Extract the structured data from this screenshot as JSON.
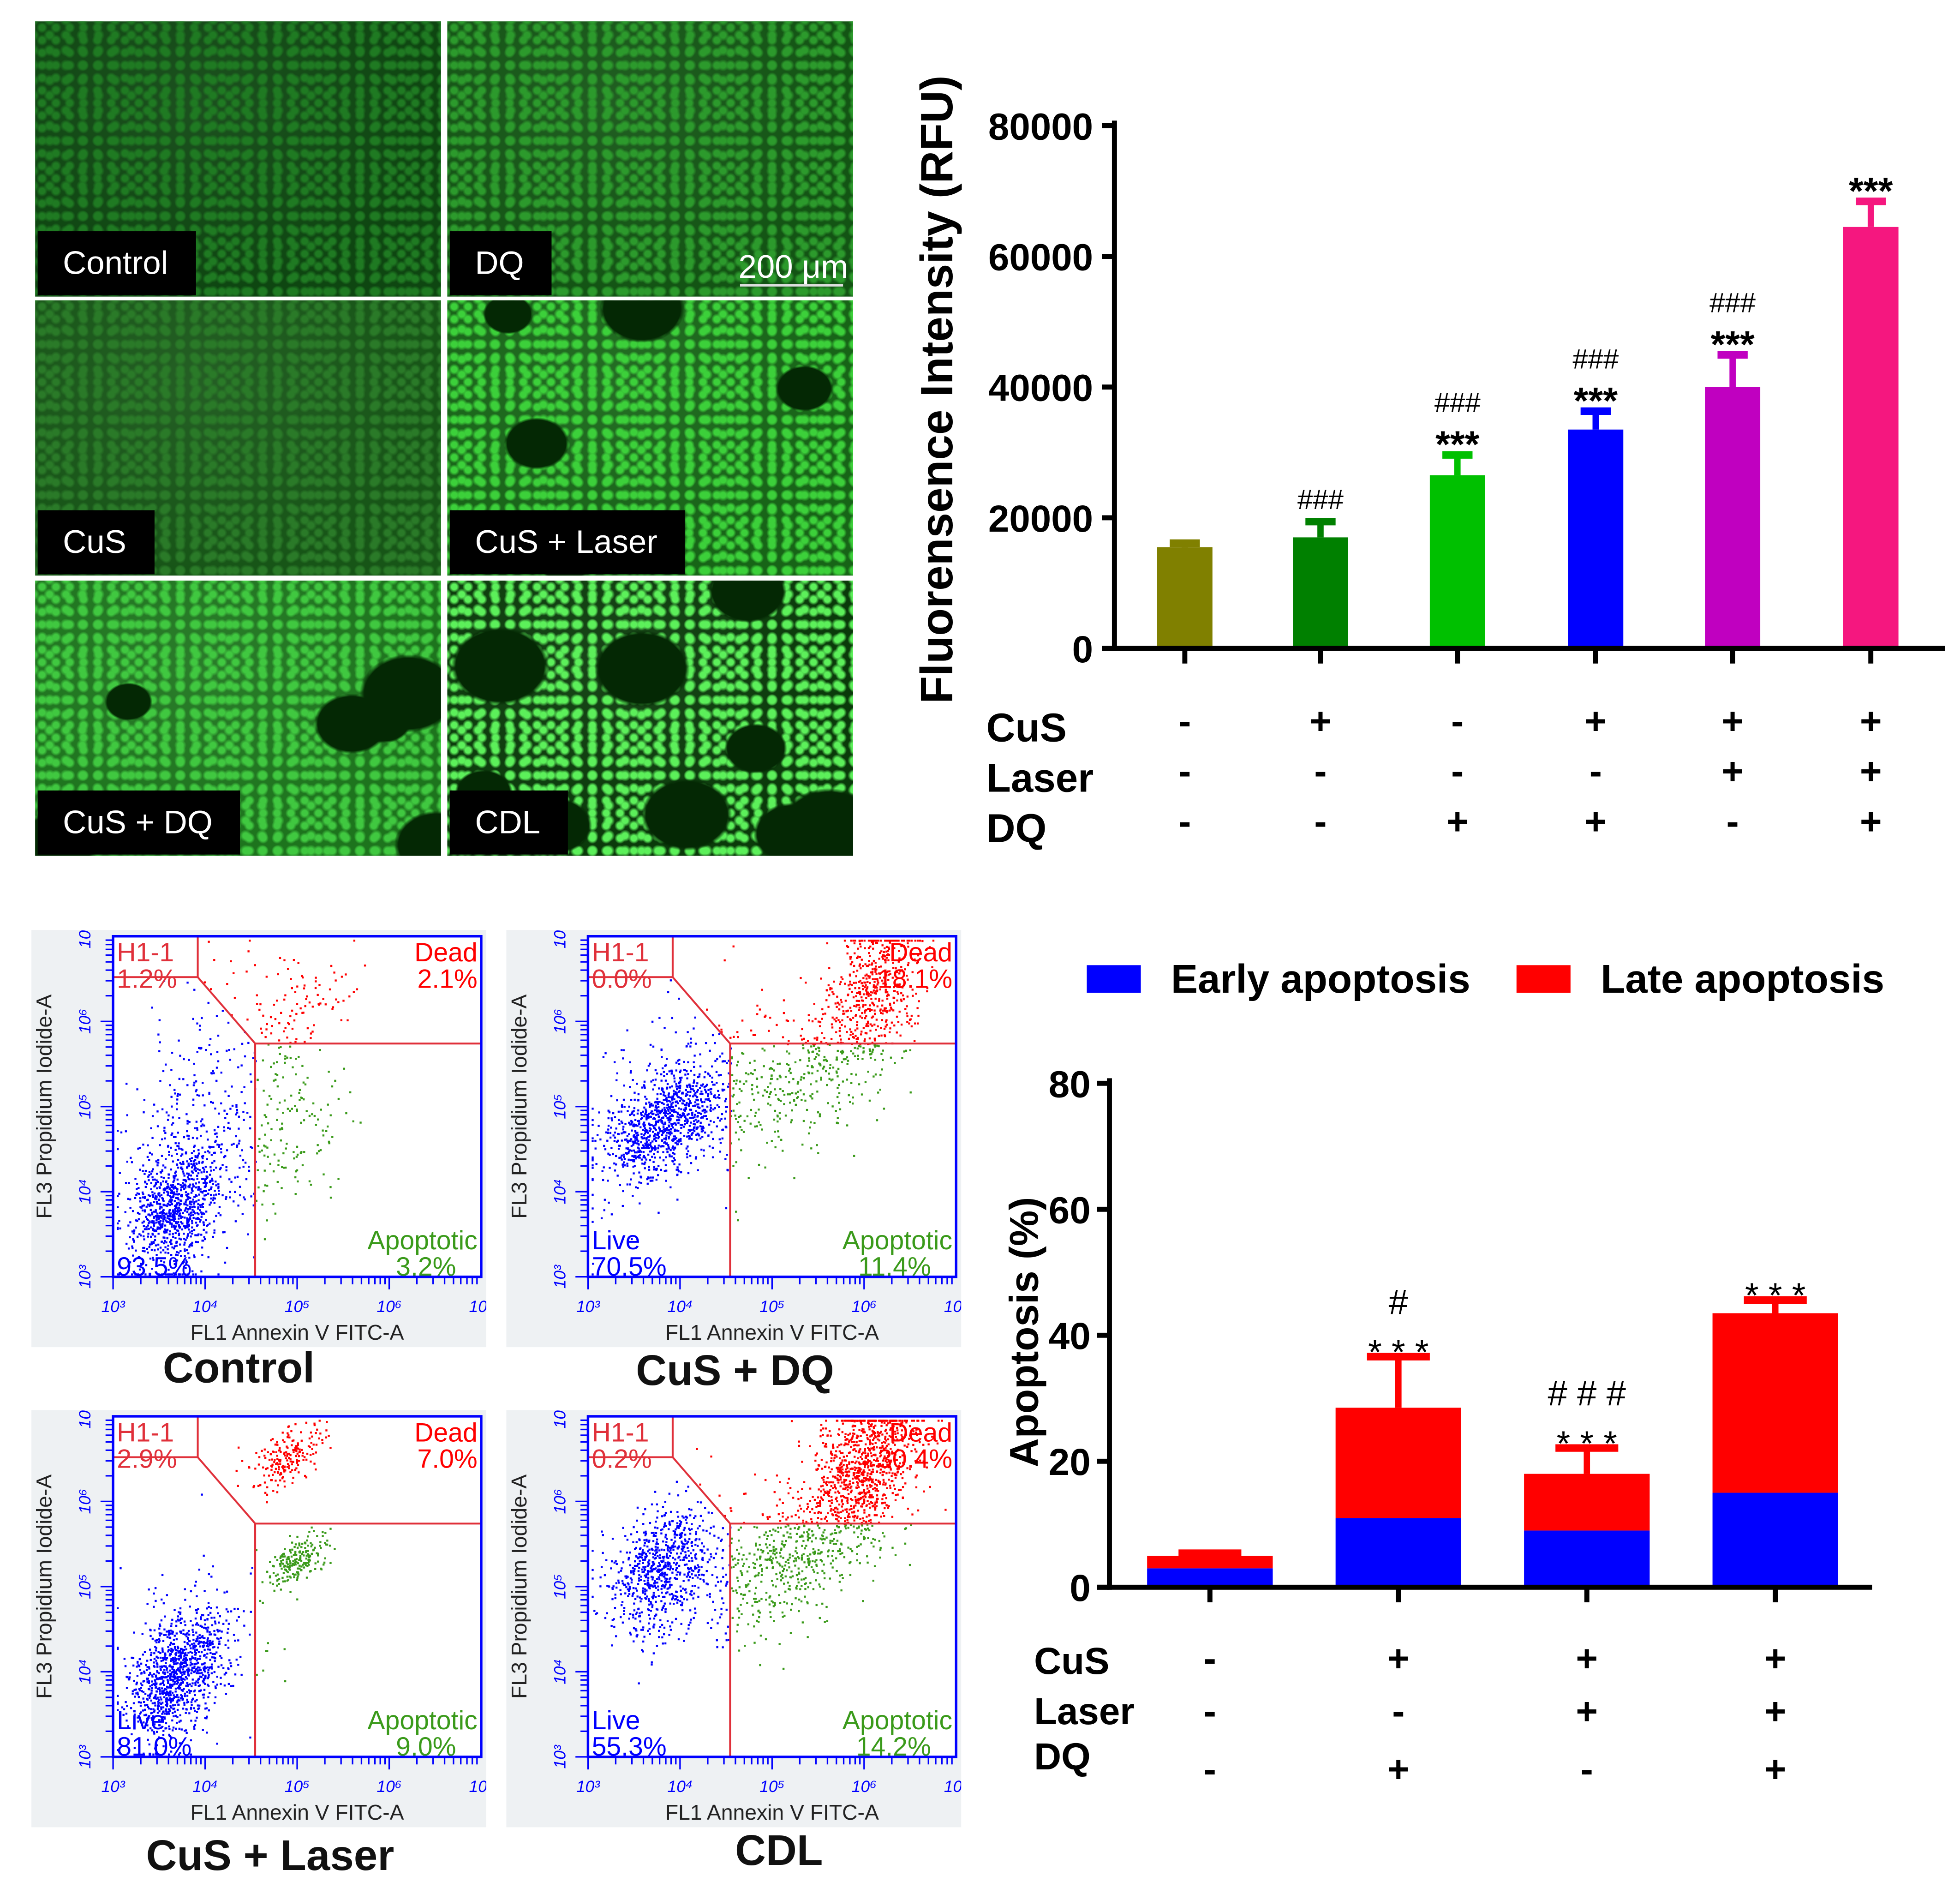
{
  "microscopy": {
    "panels": [
      {
        "label": "Control",
        "base": "#0e4611",
        "cell": "#1f7a22",
        "holes": 0
      },
      {
        "label": "DQ",
        "base": "#135414",
        "cell": "#2c9a2c",
        "holes": 0
      },
      {
        "label": "CuS",
        "base": "#175517",
        "cell": "#2a7a28",
        "holes": 0
      },
      {
        "label": "CuS + Laser",
        "base": "#176417",
        "cell": "#3cd03a",
        "holes": 5
      },
      {
        "label": "CuS + DQ",
        "base": "#1d741d",
        "cell": "#40c840",
        "holes": 6
      },
      {
        "label": "CDL",
        "base": "#0a3a0a",
        "cell": "#5cf05a",
        "holes": 10
      }
    ],
    "scale_bar": "200 μm"
  },
  "chart_data": [
    {
      "type": "bar",
      "ylabel": "Fluorensence Intensity (RFU)",
      "ylim": [
        0,
        80000
      ],
      "yticks": [
        "0",
        "20000",
        "40000",
        "60000",
        "80000"
      ],
      "values": [
        15500,
        17000,
        26500,
        33500,
        40000,
        64500
      ],
      "errors": [
        1000,
        2800,
        3500,
        3200,
        5300,
        4300
      ],
      "colors": [
        "#808000",
        "#008000",
        "#00c000",
        "#0000ff",
        "#c000c0",
        "#f5177f"
      ],
      "annotations": [
        [],
        [
          "###"
        ],
        [
          "###",
          "***"
        ],
        [
          "###",
          "***"
        ],
        [
          "###",
          "***"
        ],
        [
          "***"
        ]
      ],
      "conditions": [
        {
          "name": "CuS",
          "signs": [
            "-",
            "+",
            "-",
            "+",
            "+",
            "+"
          ]
        },
        {
          "name": "Laser",
          "signs": [
            "-",
            "-",
            "-",
            "-",
            "+",
            "+"
          ]
        },
        {
          "name": "DQ",
          "signs": [
            "-",
            "-",
            "+",
            "+",
            "-",
            "+"
          ]
        }
      ]
    },
    {
      "type": "bar",
      "stacked": true,
      "ylabel": "Apoptosis  (%)",
      "ylim": [
        0,
        80
      ],
      "yticks": [
        "0",
        "20",
        "40",
        "60",
        "80"
      ],
      "legend_position": "top",
      "series": [
        {
          "name": "Early apoptosis",
          "color": "#0000ff",
          "values": [
            3,
            11,
            9,
            15
          ]
        },
        {
          "name": "Late apoptosis",
          "color": "#ff0000",
          "values": [
            2,
            17.5,
            9,
            28.5
          ]
        }
      ],
      "errors": [
        0.8,
        8.5,
        4.5,
        2.5
      ],
      "annotations": [
        [],
        [
          "#",
          "* * *"
        ],
        [
          "# # #",
          "* * *"
        ],
        [
          "* * *"
        ]
      ],
      "conditions": [
        {
          "name": "CuS",
          "signs": [
            "-",
            "+",
            "+",
            "+"
          ]
        },
        {
          "name": "Laser",
          "signs": [
            "-",
            "-",
            "+",
            "+"
          ]
        },
        {
          "name": "DQ",
          "signs": [
            "-",
            "+",
            "-",
            "+"
          ]
        }
      ]
    }
  ],
  "flow": {
    "xlabel": "FL1 Annexin V FITC-A",
    "ylabel": "FL3 Propidium Iodide-A",
    "decades": [
      "10³",
      "10⁴",
      "10⁵",
      "10⁶",
      "10⁷"
    ],
    "gate_label": "H1-1",
    "dead_label": "Dead",
    "apoptotic_label": "Apoptotic",
    "live_label": "Live",
    "panels": [
      {
        "title": "Control",
        "h1": "1.2%",
        "dead": "2.1%",
        "apoptotic": "3.2%",
        "live": "93.5%"
      },
      {
        "title": "CuS + DQ",
        "h1": "0.0%",
        "dead": "18.1%",
        "apoptotic": "11.4%",
        "live": "70.5%"
      },
      {
        "title": "CuS + Laser",
        "h1": "2.9%",
        "dead": "7.0%",
        "apoptotic": "9.0%",
        "live": "81.0%"
      },
      {
        "title": "CDL",
        "h1": "0.2%",
        "dead": "30.4%",
        "apoptotic": "14.2%",
        "live": "55.3%"
      }
    ],
    "colors": {
      "live": "#0000ff",
      "dead": "#ff0000",
      "apoptotic": "#3a9a1a",
      "gate": "#e0303a"
    }
  }
}
